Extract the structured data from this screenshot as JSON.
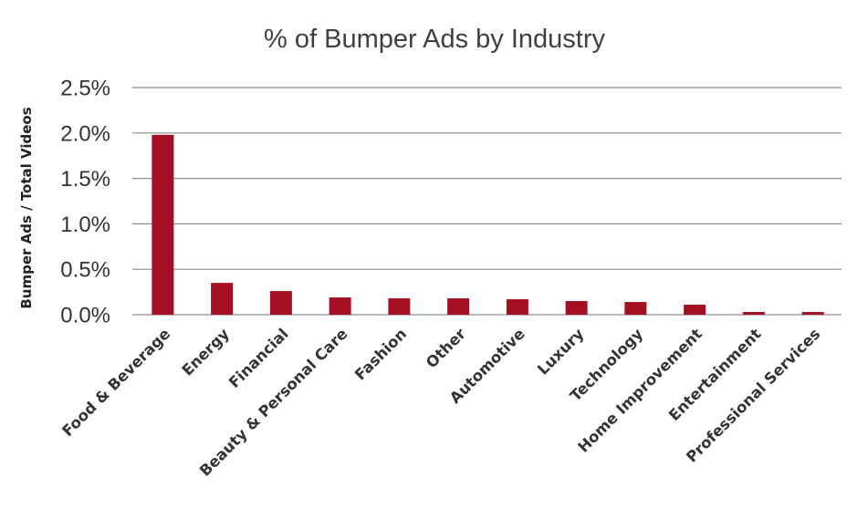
{
  "chart_data": {
    "type": "bar",
    "title": "% of Bumper Ads by Industry",
    "xlabel": "",
    "ylabel": "Bumper Ads / Total Videos",
    "ylim": [
      0,
      0.025
    ],
    "yticks": [
      0,
      0.005,
      0.01,
      0.015,
      0.02,
      0.025
    ],
    "ytick_labels": [
      "0.0%",
      "0.5%",
      "1.0%",
      "1.5%",
      "2.0%",
      "2.5%"
    ],
    "grid": true,
    "legend": "none",
    "bar_color": "#A50F23",
    "categories": [
      "Food & Beverage",
      "Energy",
      "Financial",
      "Beauty & Personal Care",
      "Fashion",
      "Other",
      "Automotive",
      "Luxury",
      "Technology",
      "Home Improvement",
      "Entertainment",
      "Professional Services"
    ],
    "values": [
      0.0198,
      0.0035,
      0.0026,
      0.0019,
      0.0018,
      0.0018,
      0.0017,
      0.0015,
      0.0014,
      0.0011,
      0.0003,
      0.0003
    ]
  }
}
